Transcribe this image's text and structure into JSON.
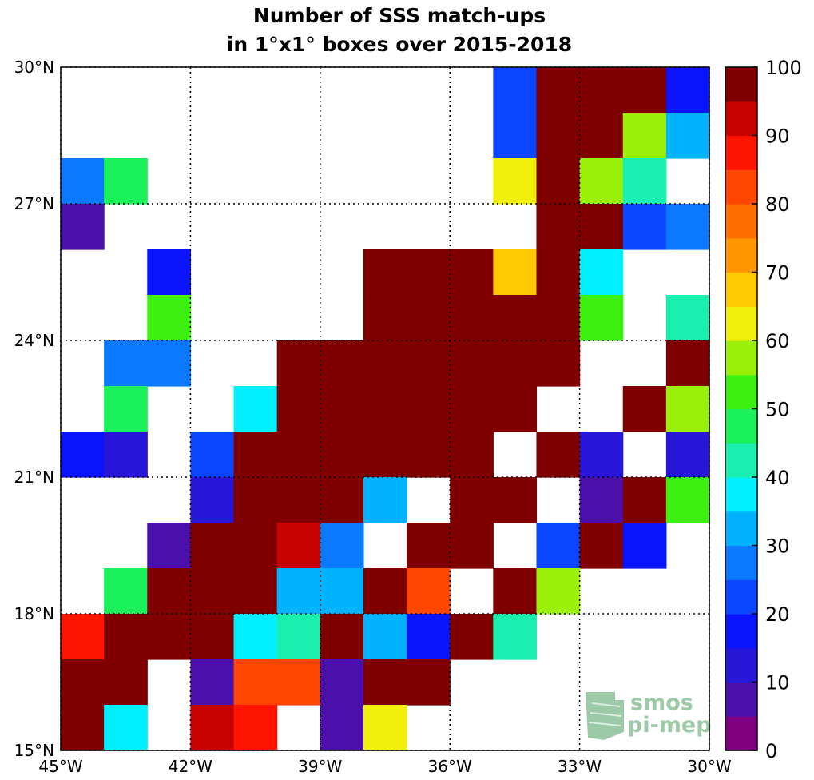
{
  "chart_data": {
    "type": "heatmap",
    "title_line1": "Number of SSS match-ups",
    "title_line2": "in 1°x1° boxes over 2015-2018",
    "x_range": [
      -45,
      -30
    ],
    "y_range": [
      15,
      30
    ],
    "x_ticks": [
      {
        "value": -45,
        "label": "45°W"
      },
      {
        "value": -42,
        "label": "42°W"
      },
      {
        "value": -39,
        "label": "39°W"
      },
      {
        "value": -36,
        "label": "36°W"
      },
      {
        "value": -33,
        "label": "33°W"
      },
      {
        "value": -30,
        "label": "30°W"
      }
    ],
    "y_ticks": [
      {
        "value": 15,
        "label": "15°N"
      },
      {
        "value": 18,
        "label": "18°N"
      },
      {
        "value": 21,
        "label": "21°N"
      },
      {
        "value": 24,
        "label": "24°N"
      },
      {
        "value": 27,
        "label": "27°N"
      },
      {
        "value": 30,
        "label": "30°N"
      }
    ],
    "grid": "dotted",
    "colorbar": {
      "min": 0,
      "max": 100,
      "ticks": [
        0,
        10,
        20,
        30,
        40,
        50,
        60,
        70,
        80,
        90,
        100
      ],
      "tick_labels": [
        "0",
        "10",
        "20",
        "30",
        "40",
        "50",
        "60",
        "70",
        "80",
        "90",
        "100"
      ],
      "colors": [
        "#800080",
        "#4b0faa",
        "#2817d9",
        "#0a14ff",
        "#0a46ff",
        "#0a78ff",
        "#00b3ff",
        "#00f0ff",
        "#19f0b0",
        "#19f05a",
        "#3cf00f",
        "#9bf00a",
        "#f0f00a",
        "#ffc800",
        "#ff9600",
        "#ff6e00",
        "#ff4600",
        "#ff1400",
        "#c80000",
        "#800000"
      ]
    },
    "grid_columns_lon_west_edge": [
      -45,
      -44,
      -43,
      -42,
      -41,
      -40,
      -39,
      -38,
      -37,
      -36,
      -35,
      -34,
      -33,
      -32,
      -31
    ],
    "grid_rows_lat_top_edge": [
      30,
      29,
      28,
      27,
      26,
      25,
      24,
      23,
      22,
      21,
      20,
      19,
      18,
      17,
      16
    ],
    "values": [
      [
        null,
        null,
        null,
        null,
        null,
        null,
        null,
        null,
        null,
        null,
        22,
        100,
        100,
        100,
        15
      ],
      [
        null,
        null,
        null,
        null,
        null,
        null,
        null,
        null,
        null,
        null,
        22,
        100,
        100,
        58,
        33
      ],
      [
        27,
        47,
        null,
        null,
        null,
        null,
        null,
        null,
        null,
        null,
        62,
        100,
        57,
        43,
        null
      ],
      [
        7,
        null,
        null,
        null,
        null,
        null,
        null,
        null,
        null,
        null,
        null,
        100,
        100,
        22,
        27
      ],
      [
        null,
        null,
        16,
        null,
        null,
        null,
        null,
        100,
        100,
        100,
        68,
        100,
        37,
        null,
        null
      ],
      [
        null,
        null,
        52,
        null,
        null,
        null,
        null,
        100,
        100,
        100,
        100,
        100,
        52,
        null,
        43
      ],
      [
        null,
        27,
        27,
        null,
        null,
        100,
        100,
        100,
        100,
        100,
        100,
        100,
        null,
        null,
        100
      ],
      [
        null,
        47,
        null,
        null,
        37,
        100,
        100,
        100,
        100,
        100,
        100,
        null,
        null,
        100,
        57
      ],
      [
        15,
        12,
        null,
        22,
        100,
        100,
        100,
        100,
        100,
        100,
        null,
        100,
        12,
        null,
        10
      ],
      [
        null,
        null,
        null,
        12,
        100,
        100,
        100,
        32,
        null,
        100,
        100,
        null,
        7,
        100,
        50
      ],
      [
        null,
        null,
        7,
        100,
        100,
        92,
        28,
        null,
        100,
        100,
        null,
        22,
        100,
        17,
        null
      ],
      [
        null,
        47,
        100,
        100,
        100,
        33,
        33,
        100,
        82,
        null,
        100,
        57,
        null,
        null,
        null
      ],
      [
        88,
        100,
        100,
        100,
        37,
        43,
        100,
        33,
        17,
        100,
        43,
        null,
        null,
        null,
        null
      ],
      [
        100,
        100,
        null,
        5,
        82,
        82,
        7,
        100,
        100,
        null,
        null,
        null,
        null,
        null,
        null
      ],
      [
        100,
        37,
        null,
        92,
        88,
        null,
        7,
        62,
        null,
        null,
        null,
        null,
        null,
        null,
        null
      ]
    ]
  },
  "logo": {
    "line1": "smos",
    "line2": "pi-mep"
  }
}
